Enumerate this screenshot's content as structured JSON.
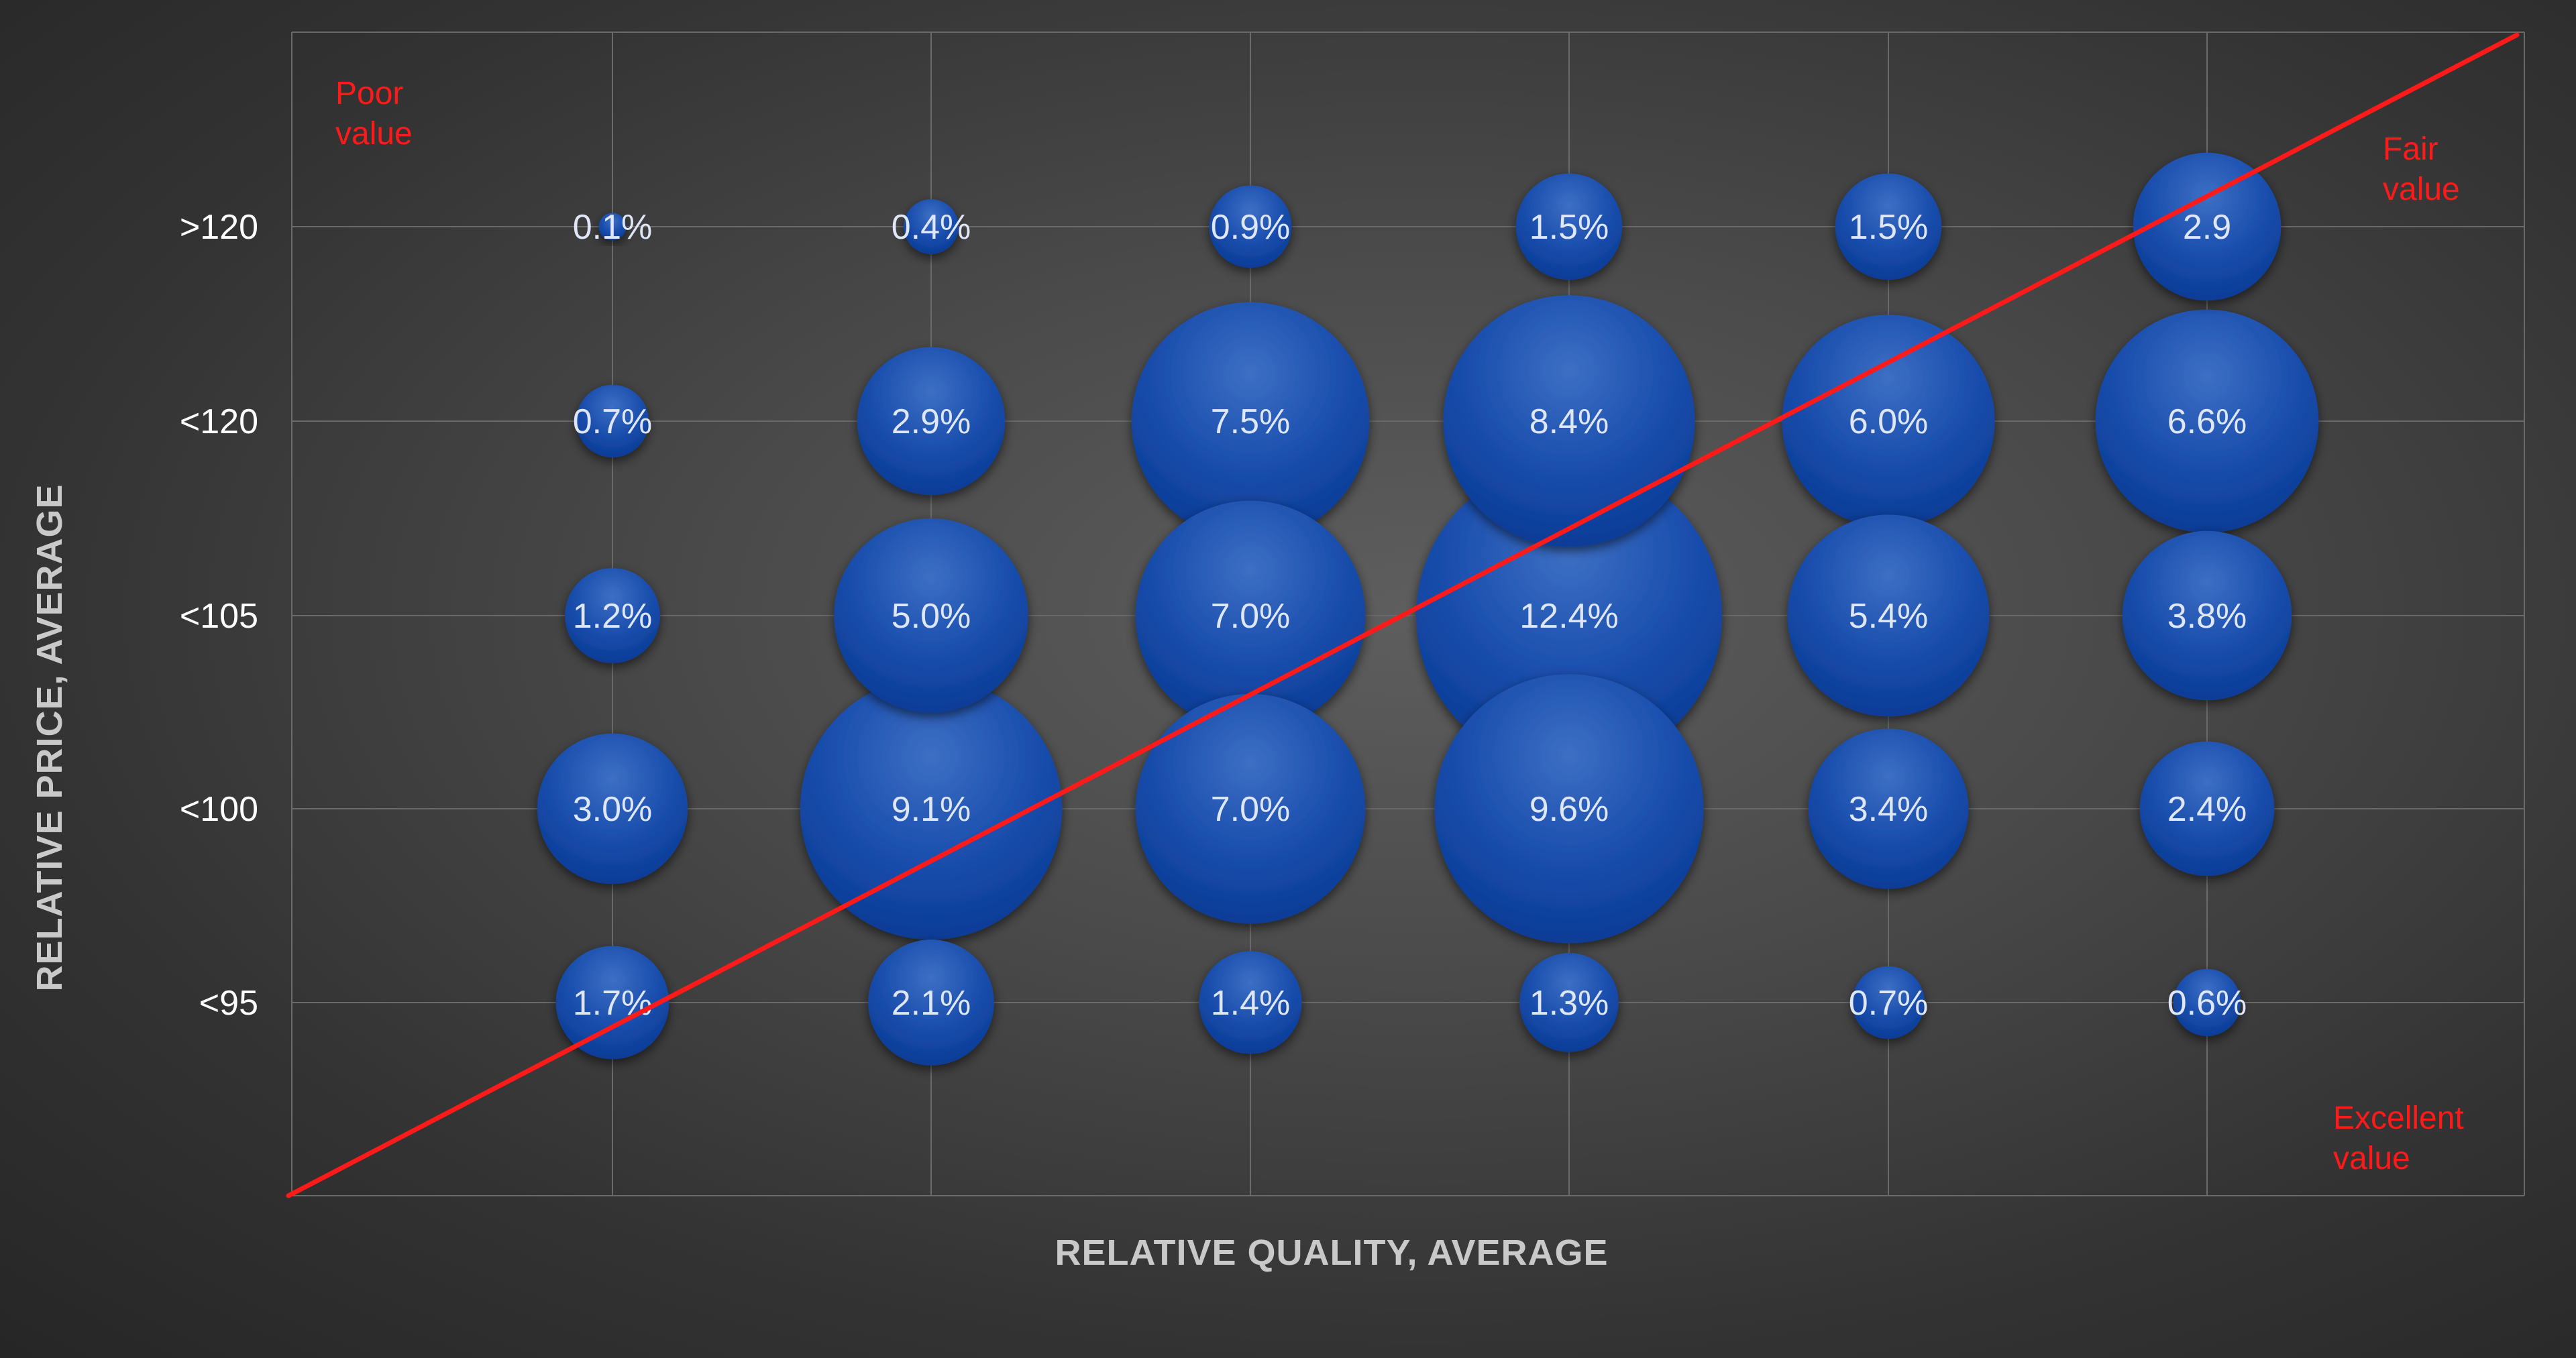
{
  "chart_data": {
    "type": "bubble",
    "xlabel": "RELATIVE QUALITY, AVERAGE",
    "ylabel": "RELATIVE PRICE, AVERAGE",
    "grid": true,
    "legend": "none",
    "x_categories": [
      "",
      "",
      "",
      "",
      "",
      "",
      ""
    ],
    "y_categories": [
      "<95",
      "<100",
      "<105",
      "<120",
      ">120"
    ],
    "bubbles": [
      {
        "x": 1,
        "y": ">120",
        "value": 0.1,
        "label": "0.1%"
      },
      {
        "x": 2,
        "y": ">120",
        "value": 0.4,
        "label": "0.4%"
      },
      {
        "x": 3,
        "y": ">120",
        "value": 0.9,
        "label": "0.9%"
      },
      {
        "x": 4,
        "y": ">120",
        "value": 1.5,
        "label": "1.5%"
      },
      {
        "x": 5,
        "y": ">120",
        "value": 1.5,
        "label": "1.5%"
      },
      {
        "x": 6,
        "y": ">120",
        "value": 2.9,
        "label": "2.9"
      },
      {
        "x": 1,
        "y": "<120",
        "value": 0.7,
        "label": "0.7%"
      },
      {
        "x": 2,
        "y": "<120",
        "value": 2.9,
        "label": "2.9%"
      },
      {
        "x": 3,
        "y": "<120",
        "value": 7.5,
        "label": "7.5%"
      },
      {
        "x": 4,
        "y": "<120",
        "value": 8.4,
        "label": "8.4%"
      },
      {
        "x": 5,
        "y": "<120",
        "value": 6.0,
        "label": "6.0%"
      },
      {
        "x": 6,
        "y": "<120",
        "value": 6.6,
        "label": "6.6%"
      },
      {
        "x": 1,
        "y": "<105",
        "value": 1.2,
        "label": "1.2%"
      },
      {
        "x": 2,
        "y": "<105",
        "value": 5.0,
        "label": "5.0%"
      },
      {
        "x": 3,
        "y": "<105",
        "value": 7.0,
        "label": "7.0%"
      },
      {
        "x": 4,
        "y": "<105",
        "value": 12.4,
        "label": "12.4%"
      },
      {
        "x": 5,
        "y": "<105",
        "value": 5.4,
        "label": "5.4%"
      },
      {
        "x": 6,
        "y": "<105",
        "value": 3.8,
        "label": "3.8%"
      },
      {
        "x": 1,
        "y": "<100",
        "value": 3.0,
        "label": "3.0%"
      },
      {
        "x": 2,
        "y": "<100",
        "value": 9.1,
        "label": "9.1%"
      },
      {
        "x": 3,
        "y": "<100",
        "value": 7.0,
        "label": "7.0%"
      },
      {
        "x": 4,
        "y": "<100",
        "value": 9.6,
        "label": "9.6%"
      },
      {
        "x": 5,
        "y": "<100",
        "value": 3.4,
        "label": "3.4%"
      },
      {
        "x": 6,
        "y": "<100",
        "value": 2.4,
        "label": "2.4%"
      },
      {
        "x": 1,
        "y": "<95",
        "value": 1.7,
        "label": "1.7%"
      },
      {
        "x": 2,
        "y": "<95",
        "value": 2.1,
        "label": "2.1%"
      },
      {
        "x": 3,
        "y": "<95",
        "value": 1.4,
        "label": "1.4%"
      },
      {
        "x": 4,
        "y": "<95",
        "value": 1.3,
        "label": "1.3%"
      },
      {
        "x": 5,
        "y": "<95",
        "value": 0.7,
        "label": "0.7%"
      },
      {
        "x": 6,
        "y": "<95",
        "value": 0.6,
        "label": "0.6%"
      }
    ],
    "diagonal_line": {
      "from": "bottom-left",
      "to": "top-right"
    },
    "annotations": [
      {
        "lines": [
          "Poor",
          "value"
        ],
        "placement": "top-left"
      },
      {
        "lines": [
          "Fair",
          "value"
        ],
        "placement": "top-right"
      },
      {
        "lines": [
          "Excellent",
          "value"
        ],
        "placement": "bottom-right"
      }
    ],
    "colors": {
      "bubble_light": "#3d6fc4",
      "bubble_mid": "#1b4fae",
      "bubble_dark": "#0a3c96",
      "diagonal": "#ff1a1a",
      "annotation": "#ff1a1a",
      "tick_text": "#ffffff",
      "axis_title": "#c9c9c9",
      "bubble_text": "#dfe6f5"
    }
  }
}
